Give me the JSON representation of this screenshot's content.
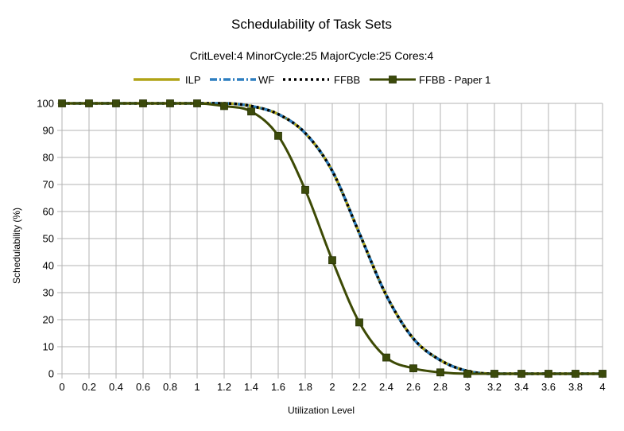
{
  "chart_data": {
    "type": "line",
    "title": "Schedulability of Task Sets",
    "subtitle": "CritLevel:4 MinorCycle:25 MajorCycle:25 Cores:4",
    "xlabel": "Utilization Level",
    "ylabel": "Schedulability (%)",
    "xlim": [
      0,
      4
    ],
    "ylim": [
      0,
      100
    ],
    "x_ticks": [
      "0",
      "0.2",
      "0.4",
      "0.6",
      "0.8",
      "1",
      "1.2",
      "1.4",
      "1.6",
      "1.8",
      "2",
      "2.2",
      "2.4",
      "2.6",
      "2.8",
      "3",
      "3.2",
      "3.4",
      "3.6",
      "3.8",
      "4"
    ],
    "y_ticks": [
      "0",
      "10",
      "20",
      "30",
      "40",
      "50",
      "60",
      "70",
      "80",
      "90",
      "100"
    ],
    "grid": true,
    "legend_position": "top",
    "x": [
      0,
      0.2,
      0.4,
      0.6,
      0.8,
      1,
      1.2,
      1.4,
      1.6,
      1.8,
      2,
      2.2,
      2.4,
      2.6,
      2.8,
      3,
      3.2,
      3.4,
      3.6,
      3.8,
      4
    ],
    "series": [
      {
        "name": "ILP",
        "color": "#b0a417",
        "style": "solid",
        "values": [
          100,
          100,
          100,
          100,
          100,
          100,
          100,
          99,
          96,
          89,
          75,
          52,
          29,
          13,
          5,
          1,
          0,
          0,
          0,
          0,
          0
        ]
      },
      {
        "name": "WF",
        "color": "#2e7fc0",
        "style": "dash-dot",
        "values": [
          100,
          100,
          100,
          100,
          100,
          100,
          100,
          99,
          96,
          89,
          75,
          52,
          29,
          13,
          5,
          1,
          0,
          0,
          0,
          0,
          0
        ]
      },
      {
        "name": "FFBB",
        "color": "#000000",
        "style": "dotted",
        "values": [
          100,
          100,
          100,
          100,
          100,
          100,
          100,
          99,
          96,
          89,
          75,
          52,
          29,
          13,
          5,
          1,
          0,
          0,
          0,
          0,
          0
        ]
      },
      {
        "name": "FFBB - Paper 1",
        "color": "#3d4a05",
        "marker_color": "#3b4a0b",
        "style": "solid-square-markers",
        "values": [
          100,
          100,
          100,
          100,
          100,
          100,
          99,
          97,
          88,
          68,
          42,
          19,
          6,
          2,
          0.5,
          0,
          0,
          0,
          0,
          0,
          0
        ]
      }
    ]
  }
}
